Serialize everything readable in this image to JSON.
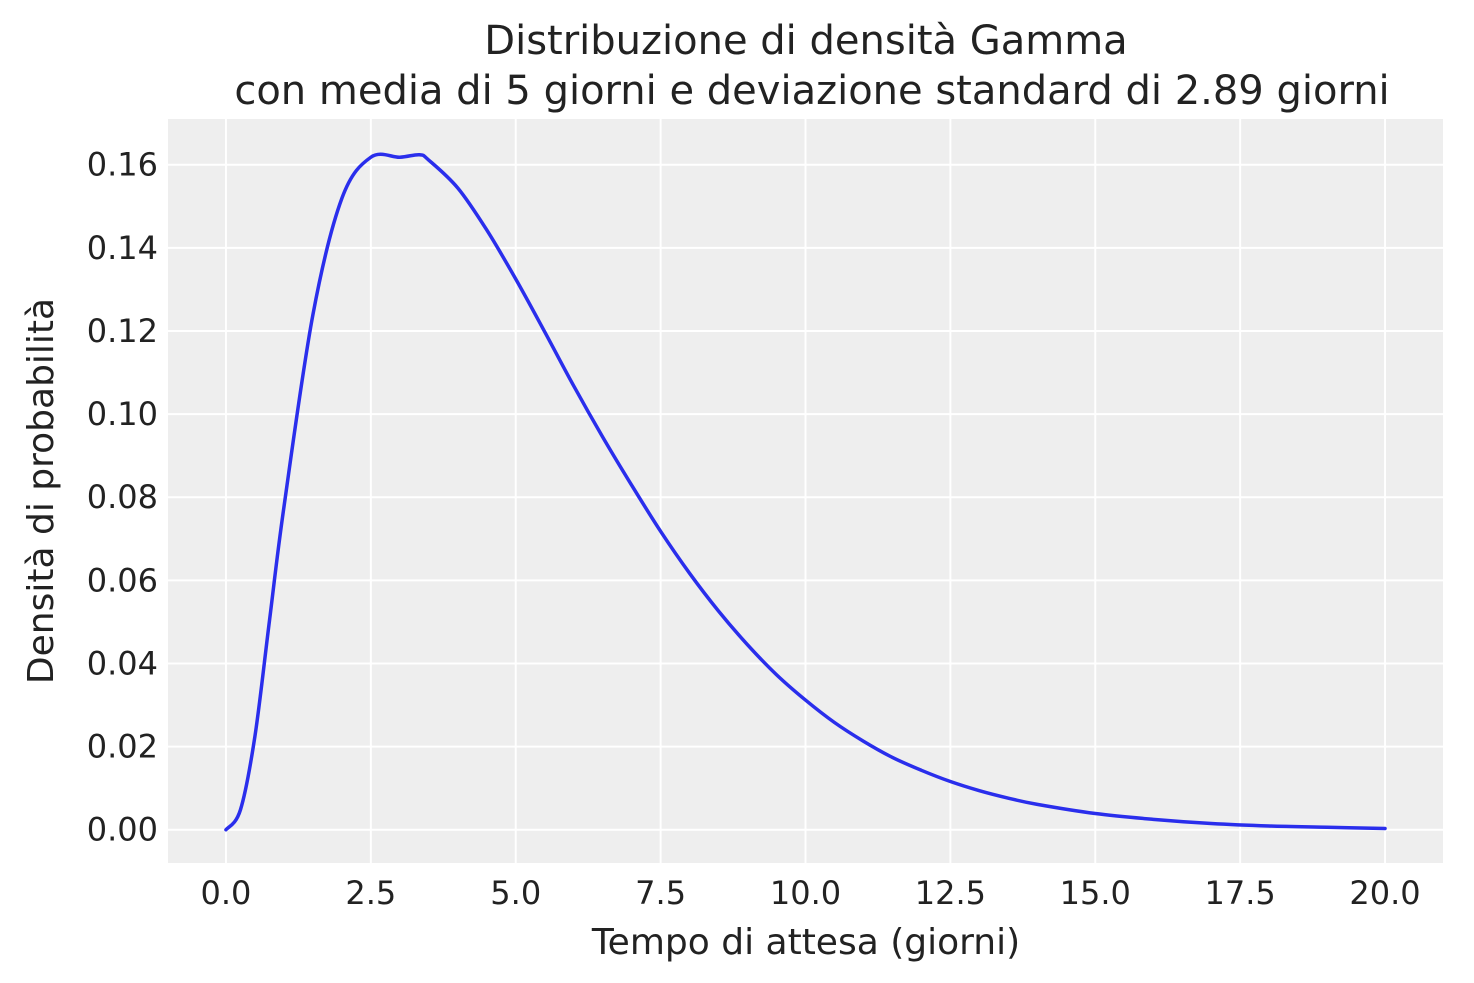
{
  "chart_data": {
    "type": "line",
    "title": "Distribuzione di densità Gamma",
    "subtitle": "con media di 5 giorni e deviazione standard di 2.89 giorni",
    "xlabel": "Tempo di attesa (giorni)",
    "ylabel": "Densità di probabilità",
    "xlim": [
      -1,
      21
    ],
    "ylim": [
      -0.008,
      0.171
    ],
    "xticks": [
      0,
      2.5,
      5,
      7.5,
      10,
      12.5,
      15,
      17.5,
      20
    ],
    "xtick_labels": [
      "0.0",
      "2.5",
      "5.0",
      "7.5",
      "10.0",
      "12.5",
      "15.0",
      "17.5",
      "20.0"
    ],
    "yticks": [
      0,
      0.02,
      0.04,
      0.06,
      0.08,
      0.1,
      0.12,
      0.14,
      0.16
    ],
    "ytick_labels": [
      "0.00",
      "0.02",
      "0.04",
      "0.06",
      "0.08",
      "0.10",
      "0.12",
      "0.14",
      "0.16"
    ],
    "grid": true,
    "background": "#eeeeee",
    "grid_color": "#ffffff",
    "series": [
      {
        "color": "#2a2eec",
        "x": [
          0,
          0.25,
          0.5,
          0.75,
          1,
          1.5,
          2,
          2.5,
          3,
          3.34,
          3.5,
          4,
          4.5,
          5,
          5.5,
          6,
          6.5,
          7,
          7.5,
          8,
          8.5,
          9,
          9.5,
          10,
          10.5,
          11,
          11.5,
          12,
          12.5,
          13,
          13.5,
          14,
          15,
          16,
          17,
          18,
          19,
          20
        ],
        "y": [
          0,
          0.0048,
          0.0225,
          0.0502,
          0.0776,
          0.1239,
          0.1519,
          0.1618,
          0.1618,
          0.1624,
          0.1611,
          0.1544,
          0.1443,
          0.1325,
          0.1198,
          0.1068,
          0.0945,
          0.0829,
          0.0718,
          0.0617,
          0.0526,
          0.0445,
          0.0373,
          0.0312,
          0.0258,
          0.0213,
          0.0174,
          0.0143,
          0.0116,
          0.0094,
          0.0076,
          0.0061,
          0.0039,
          0.0025,
          0.0015,
          0.0009,
          0.0006,
          0.0003
        ]
      }
    ]
  }
}
